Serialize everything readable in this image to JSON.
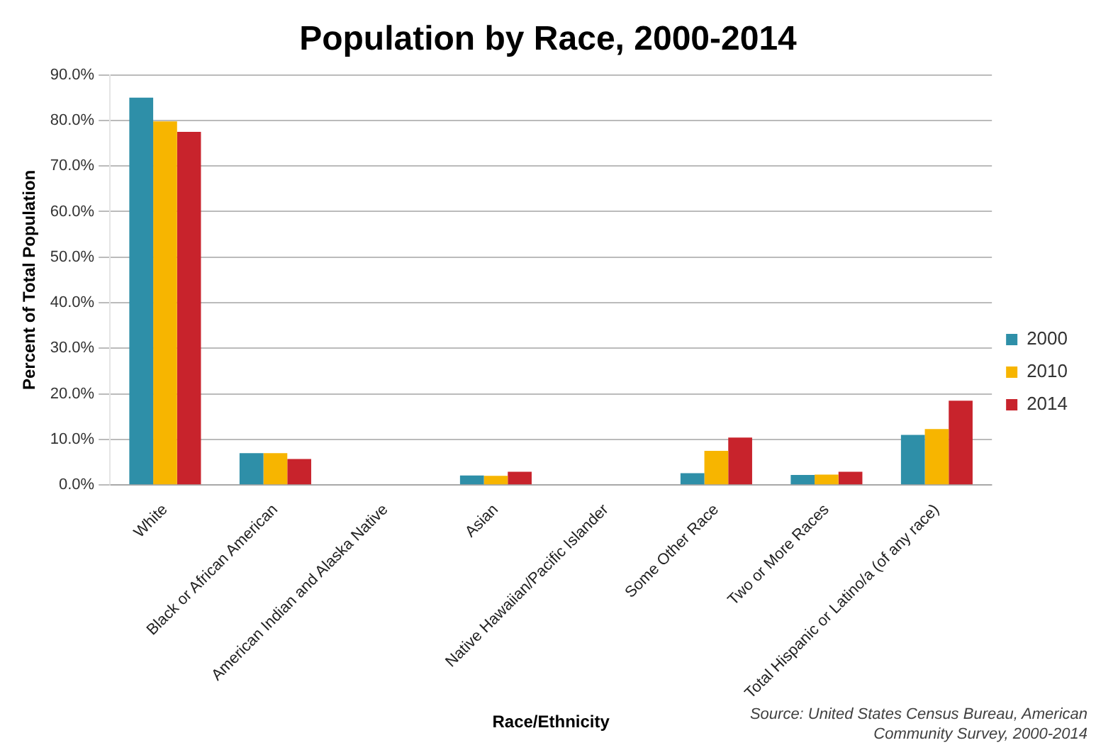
{
  "chart_data": {
    "type": "bar",
    "title": "Population by Race, 2000-2014",
    "xlabel": "Race/Ethnicity",
    "ylabel": "Percent of Total Population",
    "categories": [
      "White",
      "Black or African American",
      "American Indian and Alaska Native",
      "Asian",
      "Native Hawaiian/Pacific Islander",
      "Some Other Race",
      "Two or More Races",
      "Total Hispanic or Latino/a (of any race)"
    ],
    "series": [
      {
        "name": "2000",
        "color": "#2e8fa8",
        "values": [
          85.0,
          7.0,
          null,
          2.1,
          null,
          2.6,
          2.2,
          11.0
        ]
      },
      {
        "name": "2010",
        "color": "#f7b500",
        "values": [
          79.8,
          7.0,
          null,
          2.0,
          null,
          7.5,
          2.3,
          12.3
        ]
      },
      {
        "name": "2014",
        "color": "#c8232c",
        "values": [
          77.5,
          5.7,
          null,
          2.9,
          null,
          10.4,
          2.9,
          18.5
        ]
      }
    ],
    "ylim": [
      0,
      90
    ],
    "yticks": [
      {
        "value": 0,
        "label": "0.0%"
      },
      {
        "value": 10,
        "label": "10.0%"
      },
      {
        "value": 20,
        "label": "20.0%"
      },
      {
        "value": 30,
        "label": "30.0%"
      },
      {
        "value": 40,
        "label": "40.0%"
      },
      {
        "value": 50,
        "label": "50.0%"
      },
      {
        "value": 60,
        "label": "60.0%"
      },
      {
        "value": 70,
        "label": "70.0%"
      },
      {
        "value": 80,
        "label": "80.0%"
      },
      {
        "value": 90,
        "label": "90.0%"
      }
    ],
    "grid": "y",
    "legend": "right",
    "annotations": [
      "Source: United States Census Bureau, American Community Survey, 2000-2014"
    ]
  }
}
